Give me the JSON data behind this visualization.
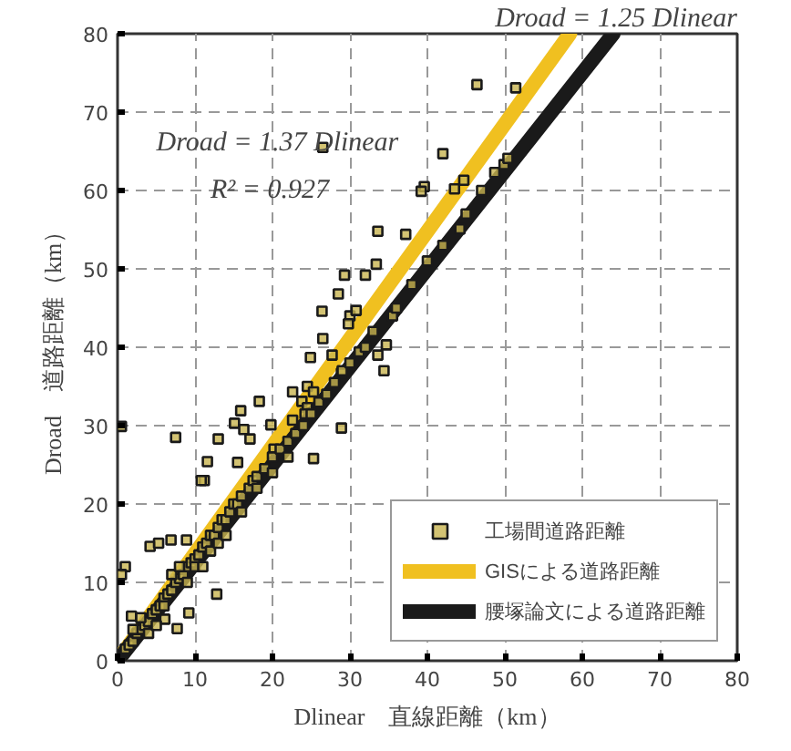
{
  "chart_data": {
    "type": "scatter",
    "xlabel": "Dlinear　直線距離（km）",
    "ylabel": "Droad　道路距離（km）",
    "annotations": [
      "Droad = 1.25 Dlinear",
      "Droad = 1.37 Dlinear",
      "R² = 0.927"
    ],
    "xlim": [
      0,
      80
    ],
    "ylim": [
      0,
      80
    ],
    "xticks": [
      0,
      10,
      20,
      30,
      40,
      50,
      60,
      70,
      80
    ],
    "yticks": [
      0,
      10,
      20,
      30,
      40,
      50,
      60,
      70,
      80
    ],
    "grid": true,
    "legend": "bottom right",
    "series": [
      {
        "name": "工場間道路距離",
        "marker": "square",
        "color": "#1a1a1a",
        "x": [
          46.4,
          51.4,
          26.5,
          42.0,
          39.6,
          39.2,
          43.5,
          44.7,
          48.7,
          49.9,
          50.4,
          33.6,
          37.2,
          44.2,
          29.3,
          32.0,
          33.4,
          28.5,
          26.4,
          30.0,
          30.8,
          29.8,
          26.5,
          27.7,
          24.9,
          31.2,
          33.6,
          34.4,
          28.9,
          34.7,
          22.6,
          24.5,
          25.3,
          18.3,
          23.8,
          24.5,
          24.2,
          22.6,
          15.9,
          15.1,
          16.3,
          17.1,
          13.0,
          7.5,
          19.8,
          28.9,
          11.6,
          15.5,
          25.3,
          11.2,
          20.2,
          10.8,
          1.0,
          4.2,
          5.3,
          6.9,
          8.9,
          12.8,
          9.2,
          7.7,
          6.1,
          1.8,
          0.5,
          0.5,
          35.5,
          1,
          1.5,
          2,
          2.5,
          3,
          3.5,
          4,
          4.5,
          5,
          5.5,
          6,
          6.5,
          7,
          7.5,
          8,
          8.5,
          9,
          9.5,
          10,
          10.5,
          11,
          11.5,
          12,
          12.5,
          13,
          13.5,
          14,
          14.5,
          15,
          15.5,
          16,
          17,
          17.5,
          18,
          19,
          20,
          21,
          22,
          23,
          24,
          25,
          26,
          27,
          28,
          29,
          30,
          32,
          33,
          36,
          38,
          40,
          42,
          45,
          47,
          2,
          3,
          4,
          5,
          6,
          7,
          8,
          9,
          10,
          11,
          12,
          13,
          14,
          16,
          18,
          20,
          22
        ],
        "values": [
          73.5,
          73.1,
          65.5,
          64.7,
          60.5,
          59.9,
          60.2,
          61.3,
          62.3,
          63.3,
          64.1,
          54.8,
          54.4,
          55.1,
          49.2,
          49.2,
          50.6,
          46.8,
          44.6,
          44.0,
          44.7,
          43.0,
          41.1,
          39.0,
          38.7,
          39.4,
          39.0,
          37.0,
          36.7,
          40.3,
          34.3,
          35.0,
          34.3,
          33.1,
          33.1,
          32.3,
          31.5,
          30.7,
          31.9,
          30.3,
          29.5,
          28.3,
          28.3,
          28.5,
          30.1,
          29.7,
          25.4,
          25.3,
          25.8,
          23.0,
          27.0,
          23.0,
          12.0,
          14.6,
          15.0,
          15.4,
          15.4,
          8.5,
          6.1,
          4.1,
          5.3,
          5.7,
          11.0,
          29.9,
          44.0,
          1.5,
          2,
          2.5,
          3.5,
          4,
          4.5,
          5,
          6,
          6.5,
          7,
          8,
          8.5,
          9,
          10,
          10.5,
          11,
          12,
          12.5,
          13,
          13.5,
          14.5,
          15,
          16,
          16,
          17,
          18,
          18,
          19,
          20,
          20,
          21,
          22,
          23,
          23.5,
          24.5,
          26,
          27,
          28,
          29,
          30,
          31.5,
          33,
          34,
          35.5,
          37,
          38,
          40,
          42,
          45,
          48,
          51,
          53,
          57,
          60,
          4,
          5.5,
          3.5,
          4.5,
          7,
          11,
          12,
          10,
          12,
          12,
          14,
          15,
          16,
          19,
          22,
          24,
          26
        ]
      },
      {
        "name": "GISによる道路距離",
        "type": "line",
        "color": "#f0c020",
        "x": [
          0,
          58.4
        ],
        "values": [
          0,
          80
        ]
      },
      {
        "name": "腰塚論文による道路距離",
        "type": "line",
        "color": "#1a1a1a",
        "x": [
          0,
          64
        ],
        "values": [
          0,
          80
        ]
      }
    ]
  }
}
